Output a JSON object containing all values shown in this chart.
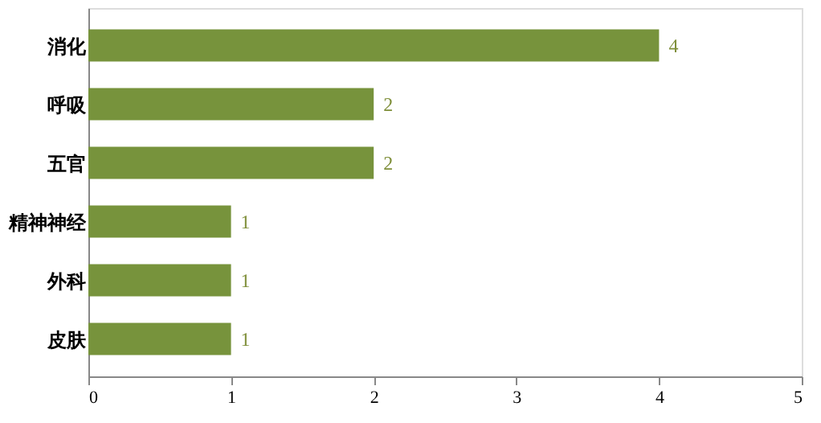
{
  "chart_data": {
    "type": "bar",
    "orientation": "horizontal",
    "categories": [
      "消化",
      "呼吸",
      "五官",
      "精神神经",
      "外科",
      "皮肤"
    ],
    "series": [
      {
        "color": "#77933c",
        "values": [
          4,
          2,
          2,
          1,
          1,
          1
        ]
      }
    ],
    "xlim": [
      0,
      5
    ],
    "xticks": [
      0,
      1,
      2,
      3,
      4,
      5
    ],
    "data_labels": true,
    "grid": false
  }
}
